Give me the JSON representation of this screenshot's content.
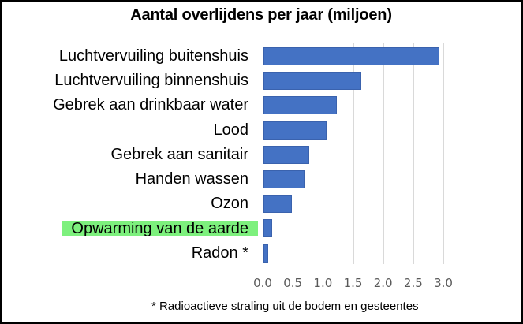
{
  "chart_data": {
    "type": "bar",
    "orientation": "horizontal",
    "title": "Aantal overlijdens per jaar (miljoen)",
    "categories": [
      "Luchtvervuiling buitenshuis",
      "Luchtvervuiling binnenshuis",
      "Gebrek aan drinkbaar water",
      "Lood",
      "Gebrek aan sanitair",
      "Handen wassen",
      "Ozon",
      "Opwarming van de aarde",
      "Radon *"
    ],
    "values": [
      2.92,
      1.63,
      1.22,
      1.05,
      0.76,
      0.7,
      0.47,
      0.15,
      0.08
    ],
    "highlighted_category": "Opwarming van de aarde",
    "highlight_color": "#7df07d",
    "bar_color": "#4472c4",
    "xlabel": "",
    "ylabel": "",
    "xlim": [
      0,
      3.0
    ],
    "x_ticks": [
      "0.0",
      "0.5",
      "1.0",
      "1.5",
      "2.0",
      "2.5",
      "3.0"
    ],
    "grid": true,
    "legend": null,
    "footnote": "* Radioactieve straling uit de bodem en gesteentes"
  }
}
